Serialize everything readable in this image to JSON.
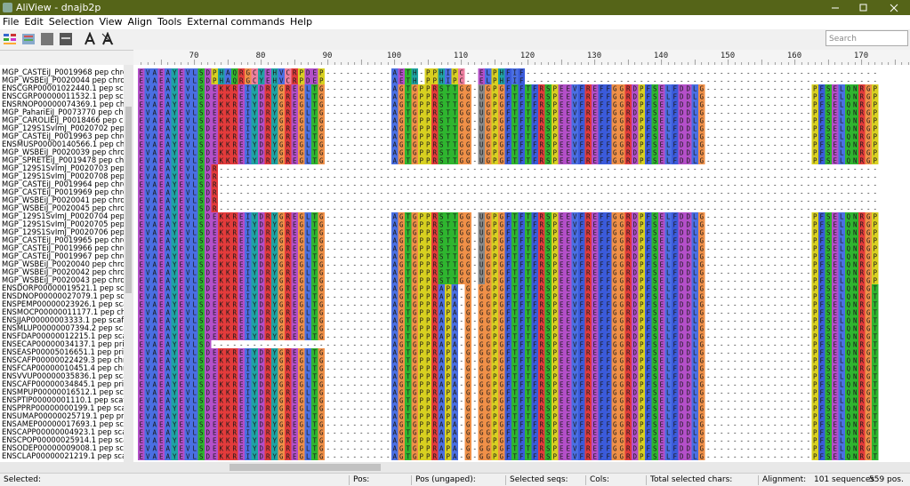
{
  "window": {
    "title": "AliView - dnajb2p"
  },
  "menu": [
    "File",
    "Edit",
    "Selection",
    "View",
    "Align",
    "Tools",
    "External commands",
    "Help"
  ],
  "search_placeholder": "Search",
  "ruler": {
    "labels": [
      70,
      80,
      90,
      100,
      110,
      120,
      130,
      140,
      150,
      160,
      170
    ]
  },
  "sequences": {
    "names": [
      "MGP_CASTEiJ_P0019968 pep chromos",
      "MGP_WSBEiJ_P0020044 pep chromos",
      "ENSCGRP00001022440.1 pep scaffold",
      "ENSCGRP00000011532.1 pep scaffold",
      "ENSRNOP00000074369.1 pep chromo",
      "MGP_PahariEiJ_P0073770 pep chromo",
      "MGP_CAROLIEiJ_P0018466 pep chrom",
      "MGP_129S1SvImJ_P0020702 pep chr",
      "MGP_CASTEiJ_P0019963 pep chromos",
      "ENSMUSP00000140566.1 pep chromo",
      "MGP_WSBEiJ_P0020039 pep chromos",
      "MGP_SPRETEiJ_P0019478 pep chromo",
      "MGP_129S1SvImJ_P0020703 pep chr",
      "MGP_129S1SvImJ_P0020708 pep chr",
      "MGP_CASTEiJ_P0019964 pep chromos",
      "MGP_CASTEiJ_P0019969 pep chromos",
      "MGP_WSBEiJ_P0020041 pep chromos",
      "MGP_WSBEiJ_P0020045 pep chromos",
      "MGP_129S1SvImJ_P0020704 pep chr",
      "MGP_129S1SvImJ_P0020705 pep chr",
      "MGP_129S1SvImJ_P0020706 pep chr",
      "MGP_CASTEiJ_P0019965 pep chromos",
      "MGP_CASTEiJ_P0019966 pep chromos",
      "MGP_CASTEiJ_P0019967 pep chromos",
      "MGP_WSBEiJ_P0020040 pep chromos",
      "MGP_WSBEiJ_P0020042 pep chromos",
      "MGP_WSBEiJ_P0020043 pep chromos",
      "ENSDORP00000019521.1 pep scaffol",
      "ENSDNOP00000027079.1 pep scaffo",
      "ENSPEMP00000023926.1 pep scaffol",
      "ENSMOCP00000011177.1 pep chromo",
      "ENSJJAP00000003333.1 pep scaffold",
      "ENSMLUP00000007394.2 pep scaffol",
      "ENSFDAP00000012215.1 pep scaffol",
      "ENSECAP00000034137.1 pep primary",
      "ENSEASP00005016651.1 pep primary",
      "ENSCAFP00000022429.3 pep chromo",
      "ENSFCAP00000010451.4 pep chromo",
      "ENSVVUP00000035836.1 pep scaffo",
      "ENSCAFP00000034845.1 pep primar",
      "ENSMPUP00000016512.1 pep scaffol",
      "ENSPTIP00000001110.1 pep scaffold",
      "ENSPPRP00000000199.1 pep scaffol",
      "ENSUMAP00000025719.1 pep primary",
      "ENSAMEP00000017693.1 pep scaffold",
      "ENSCAPP00000004923.1 pep scaffold",
      "ENSCPOP00000025914.1 pep scaffold",
      "ENSODEP00000009008.1 pep scaffold",
      "ENSCLAP00000021219.1 pep scaffold"
    ],
    "residues": [
      "EVAEAYEVLSDPHAQRGCYEHVCRPDEP----------AETH-PPHIPC--ELPHFIF-----------------------------------------------------",
      "EVAEAYEVLSDPHAQRGCYEHVCRPDEP----------AETH-PPHIPC--ELPHFIF-----------------------------------------------------",
      "EVAEAYEVLSDEKKREIYDRYGREGLTG----------AGTGPPRSTTGG-UGPGFTFTFRSPEEVFREFFGGRDPFSELFDDLG----------------PFSELQNRGP",
      "EVAEAYEVLSDEKKREIYDRYGREGLTG----------AGTGPPRSTTGG-UGPGFTFTFRSPEEVFREFFGGRDPFSELFDDLG----------------PFSELQNRGP",
      "EVAEAYEVLSDEKKREIYDRYGREGLTG----------AGTGPPRSTTGG-UGPGFTFTFRSPEEVFREFFGGRDPFSELFDDLG----------------PFSELQNRGP",
      "EVAEAYEVLSDEKKREIYDRYGREGLTG----------AGTGPPRSTTGG-UGPGFTFTFRSPEEVFREFFGGRDPFSELFDDLG----------------PFSELQNRGP",
      "EVAEAYEVLSDEKKREIYDRYGREGLTG----------AGTGPPRSTTGG-UGPGFTFTFRSPEEVFREFFGGRDPFSELFDDLG----------------PFSELQNRGP",
      "EVAEAYEVLSDEKKREIYDRYGREGLTG----------AGTGPPRSTTGG-UGPGFTFTFRSPEEVFREFFGGRDPFSELFDDLG----------------PFSELQNRGP",
      "EVAEAYEVLSDEKKREIYDRYGREGLTG----------AGTGPPRSTTGG-UGPGFTFTFRSPEEVFREFFGGRDPFSELFDDLG----------------PFSELQNRGP",
      "EVAEAYEVLSDEKKREIYDRYGREGLTG----------AGTGPPRSTTGG-UGPGFTFTFRSPEEVFREFFGGRDPFSELFDDLG----------------PFSELQNRGP",
      "EVAEAYEVLSDEKKREIYDRYGREGLTG----------AGTGPPRSTTGG-UGPGFTFTFRSPEEVFREFFGGRDPFSELFDDLG----------------PFSELQNRGP",
      "EVAEAYEVLSDEKKREIYDRYGREGLTG----------AGTGPPRSTTGG-UGPGFTFTFRSPEEVFREFFGGRDPFSELFDDLG----------------PFSELQNRGP",
      "EVAEAYEVLSDR---------------------------------------------------------------------------------------------------",
      "EVAEAYEVLSDR---------------------------------------------------------------------------------------------------",
      "EVAEAYEVLSDR---------------------------------------------------------------------------------------------------",
      "EVAEAYEVLSDR---------------------------------------------------------------------------------------------------",
      "EVAEAYEVLSDR---------------------------------------------------------------------------------------------------",
      "EVAEAYEVLSDR---------------------------------------------------------------------------------------------------",
      "EVAEAYEVLSDEKKREIYDRYGREGLTG----------AGTGPPRSTTGG-UGPGFTFTFRSPEEVFREFFGGRDPFSELFDDLG----------------PFSELQNRGP",
      "EVAEAYEVLSDEKKREIYDRYGREGLTG----------AGTGPPRSTTGG-UGPGFTFTFRSPEEVFREFFGGRDPFSELFDDLG----------------PFSELQNRGP",
      "EVAEAYEVLSDEKKREIYDRYGREGLTG----------AGTGPPRSTTGG-UGPGFTFTFRSPEEVFREFFGGRDPFSELFDDLG----------------PFSELQNRGP",
      "EVAEAYEVLSDEKKREIYDRYGREGLTG----------AGTGPPRSTTGG-UGPGFTFTFRSPEEVFREFFGGRDPFSELFDDLG----------------PFSELQNRGP",
      "EVAEAYEVLSDEKKREIYDRYGREGLTG----------AGTGPPRSTTGG-UGPGFTFTFRSPEEVFREFFGGRDPFSELFDDLG----------------PFSELQNRGP",
      "EVAEAYEVLSDEKKREIYDRYGREGLTG----------AGTGPPRSTTGG-UGPGFTFTFRSPEEVFREFFGGRDPFSELFDDLG----------------PFSELQNRGP",
      "EVAEAYEVLSDEKKREIYDRYGREGLTG----------AGTGPPRSTTGG-UGPGFTFTFRSPEEVFREFFGGRDPFSELFDDLG----------------PFSELQNRGP",
      "EVAEAYEVLSDEKKREIYDRYGREGLTG----------AGTGPPRSTTGG-UGPGFTFTFRSPEEVFREFFGGRDPFSELFDDLG----------------PFSELQNRGP",
      "EVAEAYEVLSDEKKREIYDRYGREGLTG----------AGTGPPRSTTGG-UGPGFTFTFRSPEEVFREFFGGRDPFSELFDDLG----------------PFSELQNRGP",
      "EVAEAYEVLSDEKKREIYDRYGREGLTG----------AGTGPPRAPA-G-GGPGFTFTFRSPEEVFREFFGGRDPFSELFDDLG----------------PFSELQNRGT",
      "EVAEAYEVLSDEKKREIYDRYGREGLTG----------AGTGPPRAPA-G-GGPGFTFTFRSPEEVFREFFGGRDPFSELFDDLG----------------PFSELQNRGT",
      "EVAEAYEVLSDEKKREIYDRYGREGLTG----------AGTGPPRAPA-G-GGPGFTFTFRSPEEVFREFFGGRDPFSELFDDLG----------------PFSELQNRGT",
      "EVAEAYEVLSDEKKREIYDRYGREGLTG----------AGTGPPRAPA-G-GGPGFTFTFRSPEEVFREFFGGRDPFSELFDDLG----------------PFSELQNRGT",
      "EVAEAYEVLSDEKKREIYDRYGREGLTG----------AGTGPPRAPA-G-GGPGFTFTFRSPEEVFREFFGGRDPFSELFDDLG----------------PFSELQNRGT",
      "EVAEAYEVLSDEKKREIYDRYGREGLTG----------AGTGPPRAPA-G-GGPGFTFTFRSPEEVFREFFGGRDPFSELFDDLG----------------PFSELQNRGT",
      "EVAEAYEVLSDEKKREIYDRYGREGLTG----------AGTGPPRAPA-G-GGPGFTFTFRSPEEVFREFFGGRDPFSELFDDLG----------------PFSELQNRGT",
      "EVAEAYEVLSD---------------------------AGTGPPRAPA-G-GGPGFTFTFRSPEEVFREFFGGRDPFSELFDDLG----------------PFSELQNRGT",
      "EVAEAYEVLSDEKKREIYDRYGREGLTG----------AGTGPPRAPA-G-GGPGFTFTFRSPEEVFREFFGGRDPFSELFDDLG----------------PFSELQNRGT",
      "EVAEAYEVLSDEKKREIYDRYGREGLTG----------AGTGPPRAPA-G-GGPGFTFTFRSPEEVFREFFGGRDPFSELFDDLG----------------PFSELQNRGT",
      "EVAEAYEVLSDEKKREIYDRYGREGLTG----------AGTGPPRAPA-G-GGPGFTFTFRSPEEVFREFFGGRDPFSELFDDLG----------------PFSELQNRGT",
      "EVAEAYEVLSDEKKREIYDRYGREGLTG----------AGTGPPRAPA-G-GGPGFTFTFRSPEEVFREFFGGRDPFSELFDDLG----------------PFSELQNRGT",
      "EVAEAYEVLSDEKKREIYDRYGREGLTG----------AGTGPPRAPA-G-GGPGFTFTFRSPEEVFREFFGGRDPFSELFDDLG----------------PFSELQNRGT",
      "EVAEAYEVLSDEKKREIYDRYGREGLTG----------AGTGPPRAPA-G-GGPGFTFTFRSPEEVFREFFGGRDPFSELFDDLG----------------PFSELQNRGT",
      "EVAEAYEVLSDEKKREIYDRYGREGLTG----------AGTGPPRAPA-G-GGPGFTFTFRSPEEVFREFFGGRDPFSELFDDLG----------------PFSELQNRGT",
      "EVAEAYEVLSDEKKREIYDRYGREGLTG----------AGTGPPRAPA-G-GGPGFTFTFRSPEEVFREFFGGRDPFSELFDDLG----------------PFSELQNRGT",
      "EVAEAYEVLSDEKKREIYDRYGREGLTG----------AGTGPPRAPA-G-GGPGFTFTFRSPEEVFREFFGGRDPFSELFDDLG----------------PFSELQNRGT",
      "EVAEAYEVLSDEKKREIYDRYGREGLTG----------AGTGPPRAPA-G-GGPGFTFTFRSPEEVFREFFGGRDPFSELFDDLG----------------PFSELQNRGT",
      "EVAEAYEVLSDEKKREIYDRYGREGLTG----------AGTGPPRAPA-G-GGPGFTFTFRSPEEVFREFFGGRDPFSELFDDLG----------------PFSELQNRGT",
      "EVAEAYEVLSDEKKREIYDRYGREGLTG----------AGTGPPRAPA-G-GGPGFTFTFRSPEEVFREFFGGRDPFSELFDDLG----------------PFSELQNRGT",
      "EVAEAYEVLSDEKKREIYDRYGREGLTG----------AGTGPPRAPA-G-GGPGFTFTFRSPEEVFREFFGGRDPFSELFDDLG----------------PFSELQNRGT",
      "EVAEAYEVLSDEKKREIYDRYGREGLTG----------AGTGPPRAPA-G-GGPGFTFTFRSPEEVFREFFGGRDPFSELFDDLG----------------PFSELQNRGT"
    ]
  },
  "status": {
    "selected": "Selected:",
    "pos": "Pos:",
    "pos_ungaped": "Pos (ungaped):",
    "selected_seqs": "Selected seqs:",
    "cols": "Cols:",
    "total_selected_chars": "Total selected chars:",
    "alignment": "Alignment:",
    "sequences": "101 sequences",
    "positions": "559 pos."
  }
}
